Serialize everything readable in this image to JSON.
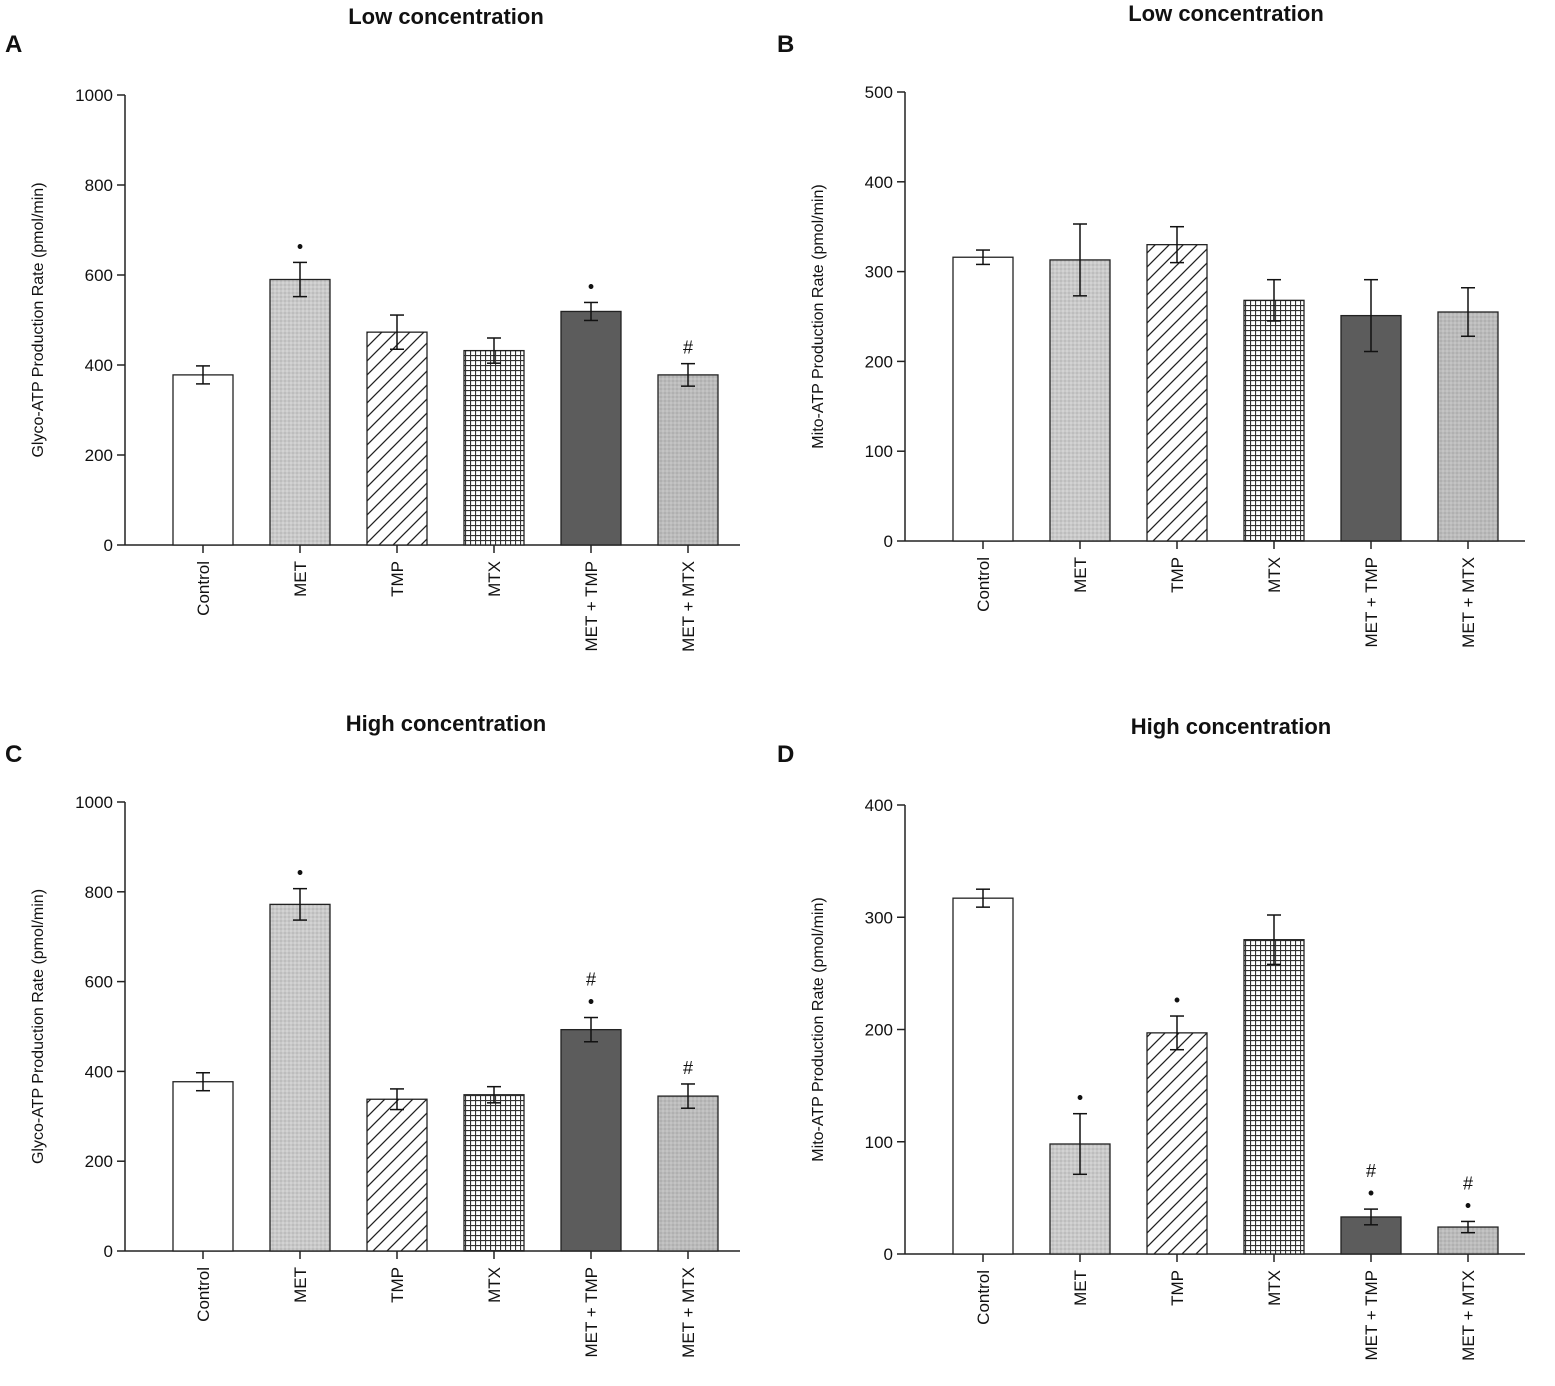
{
  "colors": {
    "control": "#ffffff",
    "met": "#c8c8c8",
    "tmp": "#ffffff",
    "mtx": "#ffffff",
    "met_tmp": "#5c5c5c",
    "met_mtx": "#b8b8b8",
    "axis": "#222222"
  },
  "chart_data": [
    {
      "panel": "A",
      "type": "bar",
      "title": "Low concentration",
      "xlabel": "",
      "ylabel": "Glyco-ATP Production Rate (pmol/min)",
      "ylim": [
        0,
        1000
      ],
      "yticks": [
        "0",
        "200",
        "400",
        "600",
        "800",
        "1000"
      ],
      "categories": [
        "Control",
        "MET",
        "TMP",
        "MTX",
        "MET + TMP",
        "MET + MTX"
      ],
      "values": [
        378,
        590,
        473,
        432,
        519,
        378
      ],
      "errors": [
        20,
        38,
        38,
        28,
        20,
        25
      ],
      "annotations": [
        "",
        "•",
        "",
        "",
        "•",
        "#"
      ]
    },
    {
      "panel": "B",
      "type": "bar",
      "title": "Low concentration",
      "xlabel": "",
      "ylabel": "Mito-ATP Production Rate (pmol/min)",
      "ylim": [
        0,
        500
      ],
      "yticks": [
        "0",
        "100",
        "200",
        "300",
        "400",
        "500"
      ],
      "categories": [
        "Control",
        "MET",
        "TMP",
        "MTX",
        "MET + TMP",
        "MET + MTX"
      ],
      "values": [
        316,
        313,
        330,
        268,
        251,
        255
      ],
      "errors": [
        8,
        40,
        20,
        23,
        40,
        27
      ],
      "annotations": [
        "",
        "",
        "",
        "",
        "",
        ""
      ]
    },
    {
      "panel": "C",
      "type": "bar",
      "title": "High concentration",
      "xlabel": "",
      "ylabel": "Glyco-ATP Production Rate (pmol/min)",
      "ylim": [
        0,
        1000
      ],
      "yticks": [
        "0",
        "200",
        "400",
        "600",
        "800",
        "1000"
      ],
      "categories": [
        "Control",
        "MET",
        "TMP",
        "MTX",
        "MET + TMP",
        "MET + MTX"
      ],
      "values": [
        377,
        772,
        338,
        348,
        493,
        345
      ],
      "errors": [
        20,
        35,
        23,
        18,
        27,
        27
      ],
      "annotations": [
        "",
        "•",
        "",
        "",
        "• #",
        "#"
      ]
    },
    {
      "panel": "D",
      "type": "bar",
      "title": "High concentration",
      "xlabel": "",
      "ylabel": "Mito-ATP Production Rate (pmol/min)",
      "ylim": [
        0,
        400
      ],
      "yticks": [
        "0",
        "100",
        "200",
        "300",
        "400"
      ],
      "categories": [
        "Control",
        "MET",
        "TMP",
        "MTX",
        "MET + TMP",
        "MET + MTX"
      ],
      "values": [
        317,
        98,
        197,
        280,
        33,
        24
      ],
      "errors": [
        8,
        27,
        15,
        22,
        7,
        5
      ],
      "annotations": [
        "",
        "•",
        "•",
        "",
        "• #",
        "• #"
      ]
    }
  ]
}
